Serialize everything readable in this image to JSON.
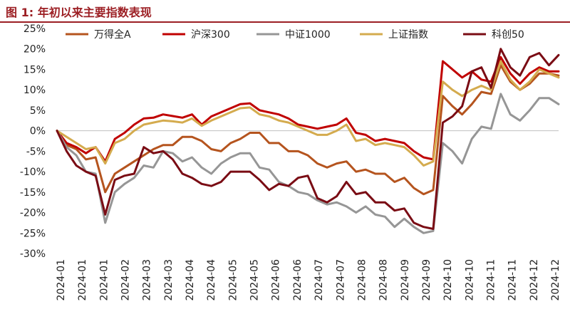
{
  "figure": {
    "label": "图 1:",
    "title": "年初以来主要指数表现"
  },
  "chart_data": {
    "type": "line",
    "ylim": [
      -0.3,
      0.25
    ],
    "ytick_values": [
      0.25,
      0.2,
      0.15,
      0.1,
      0.05,
      0,
      -0.05,
      -0.1,
      -0.15,
      -0.2,
      -0.25,
      -0.3
    ],
    "ytick_labels": [
      "25%",
      "20%",
      "15%",
      "10%",
      "5%",
      "0%",
      "-5%",
      "-10%",
      "-15%",
      "-20%",
      "-25%",
      "-30%"
    ],
    "x_tick_labels": [
      "2024-01",
      "2024-01",
      "2024-01",
      "2024-02",
      "2024-03",
      "2024-03",
      "2024-04",
      "2024-04",
      "2024-05",
      "2024-05",
      "2024-06",
      "2024-06",
      "2024-07",
      "2024-07",
      "2024-08",
      "2024-08",
      "2024-09",
      "2024-09",
      "2024-10",
      "2024-10",
      "2024-11",
      "2024-11",
      "2024-12",
      "2024-12"
    ],
    "grid": false,
    "legend_position": "top",
    "series": [
      {
        "name": "万得全A",
        "color": "#b5541e",
        "values": [
          0.0,
          -0.035,
          -0.045,
          -0.07,
          -0.065,
          -0.15,
          -0.105,
          -0.09,
          -0.075,
          -0.06,
          -0.045,
          -0.035,
          -0.035,
          -0.015,
          -0.015,
          -0.025,
          -0.045,
          -0.05,
          -0.03,
          -0.02,
          -0.005,
          -0.005,
          -0.03,
          -0.03,
          -0.05,
          -0.05,
          -0.06,
          -0.08,
          -0.09,
          -0.08,
          -0.075,
          -0.1,
          -0.095,
          -0.105,
          -0.105,
          -0.125,
          -0.115,
          -0.14,
          -0.155,
          -0.145,
          0.085,
          0.06,
          0.04,
          0.065,
          0.095,
          0.09,
          0.16,
          0.12,
          0.1,
          0.115,
          0.14,
          0.14,
          0.135
        ]
      },
      {
        "name": "沪深300",
        "color": "#c00000",
        "values": [
          0.0,
          -0.03,
          -0.04,
          -0.055,
          -0.04,
          -0.075,
          -0.02,
          -0.005,
          0.015,
          0.03,
          0.032,
          0.04,
          0.036,
          0.032,
          0.04,
          0.015,
          0.035,
          0.045,
          0.055,
          0.065,
          0.067,
          0.05,
          0.045,
          0.04,
          0.03,
          0.015,
          0.01,
          0.005,
          0.01,
          0.015,
          0.03,
          -0.005,
          -0.01,
          -0.025,
          -0.02,
          -0.025,
          -0.03,
          -0.05,
          -0.065,
          -0.07,
          0.17,
          0.15,
          0.13,
          0.145,
          0.125,
          0.12,
          0.18,
          0.14,
          0.115,
          0.14,
          0.155,
          0.145,
          0.145
        ]
      },
      {
        "name": "中证1000",
        "color": "#969696",
        "values": [
          0.0,
          -0.04,
          -0.06,
          -0.1,
          -0.105,
          -0.225,
          -0.15,
          -0.13,
          -0.115,
          -0.085,
          -0.09,
          -0.05,
          -0.055,
          -0.075,
          -0.065,
          -0.09,
          -0.105,
          -0.08,
          -0.065,
          -0.055,
          -0.055,
          -0.09,
          -0.095,
          -0.125,
          -0.135,
          -0.15,
          -0.155,
          -0.17,
          -0.18,
          -0.175,
          -0.185,
          -0.2,
          -0.185,
          -0.205,
          -0.21,
          -0.235,
          -0.215,
          -0.235,
          -0.25,
          -0.245,
          -0.03,
          -0.05,
          -0.08,
          -0.02,
          0.01,
          0.005,
          0.09,
          0.04,
          0.025,
          0.05,
          0.08,
          0.08,
          0.065
        ]
      },
      {
        "name": "上证指数",
        "color": "#d4ab4e",
        "values": [
          0.0,
          -0.015,
          -0.03,
          -0.045,
          -0.04,
          -0.08,
          -0.03,
          -0.02,
          0.0,
          0.015,
          0.02,
          0.025,
          0.023,
          0.02,
          0.03,
          0.012,
          0.025,
          0.035,
          0.045,
          0.055,
          0.057,
          0.04,
          0.035,
          0.025,
          0.02,
          0.01,
          0.0,
          -0.01,
          -0.01,
          0.0,
          0.015,
          -0.025,
          -0.02,
          -0.035,
          -0.03,
          -0.035,
          -0.04,
          -0.06,
          -0.085,
          -0.075,
          0.12,
          0.1,
          0.085,
          0.1,
          0.11,
          0.1,
          0.17,
          0.125,
          0.1,
          0.12,
          0.15,
          0.14,
          0.13
        ]
      },
      {
        "name": "科创50",
        "color": "#7a0c14",
        "values": [
          0.0,
          -0.05,
          -0.085,
          -0.1,
          -0.11,
          -0.205,
          -0.12,
          -0.11,
          -0.105,
          -0.04,
          -0.055,
          -0.05,
          -0.07,
          -0.105,
          -0.115,
          -0.13,
          -0.135,
          -0.125,
          -0.1,
          -0.1,
          -0.1,
          -0.12,
          -0.145,
          -0.13,
          -0.135,
          -0.115,
          -0.11,
          -0.165,
          -0.175,
          -0.16,
          -0.125,
          -0.155,
          -0.15,
          -0.175,
          -0.175,
          -0.195,
          -0.19,
          -0.225,
          -0.235,
          -0.24,
          0.02,
          0.035,
          0.06,
          0.145,
          0.155,
          0.105,
          0.2,
          0.155,
          0.135,
          0.18,
          0.19,
          0.16,
          0.185
        ]
      }
    ]
  }
}
